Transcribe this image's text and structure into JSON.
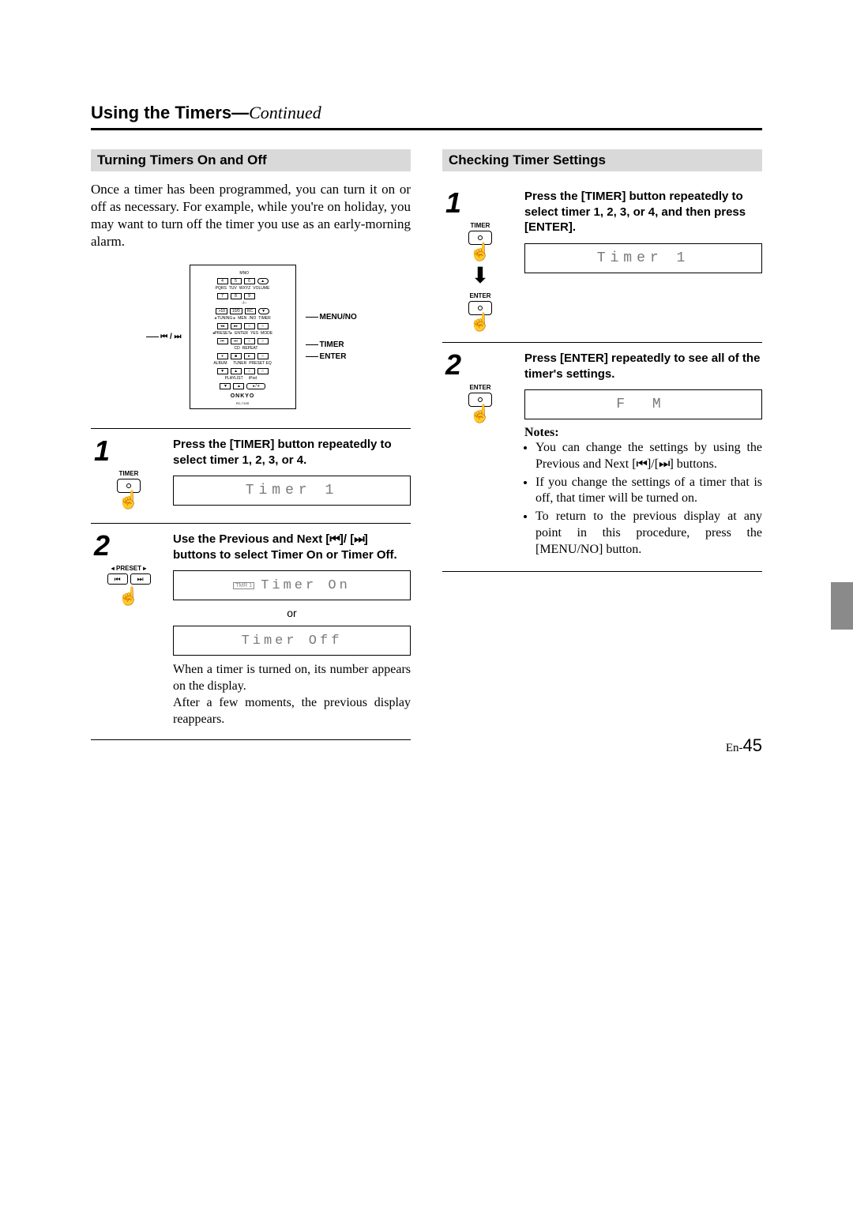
{
  "page": {
    "title_main": "Using the Timers",
    "title_sep": "—",
    "title_cont": "Continued",
    "page_label_prefix": "En-",
    "page_number": "45"
  },
  "left": {
    "heading": "Turning Timers On and Off",
    "intro": "Once a timer has been programmed, you can turn it on or off as necessary. For example, while you're on holiday, you may want to turn off the timer you use as an early-morning alarm.",
    "remote_labels": {
      "left": "⏮ / ⏭",
      "right1": "MENU/NO",
      "right2": "TIMER",
      "right3": "ENTER"
    },
    "remote_brand": "ONKYO",
    "remote_model": "RC-713S",
    "step1": {
      "num": "1",
      "caption": "TIMER",
      "instr": "Press the [TIMER] button repeatedly to select timer 1, 2, 3, or 4.",
      "lcd": "Timer  1"
    },
    "step2": {
      "num": "2",
      "caption": "◂ PRESET ▸",
      "instr_a": "Use the Previous and Next [",
      "instr_b": "]/ [",
      "instr_c": "] buttons to select Timer On or Timer Off.",
      "prev_glyph": "⏮",
      "next_glyph": "⏭",
      "lcd_on": "Timer  On",
      "or": "or",
      "lcd_off": "Timer  Off",
      "tmr_flag": "TMR 1",
      "after1": "When a timer is turned on, its number appears on the display.",
      "after2": "After a few moments, the previous display reappears."
    }
  },
  "right": {
    "heading": "Checking Timer Settings",
    "step1": {
      "num": "1",
      "caption_timer": "TIMER",
      "caption_enter": "ENTER",
      "instr": "Press the [TIMER] button repeatedly to select timer 1, 2, 3, or 4, and then press [ENTER].",
      "lcd": "Timer  1"
    },
    "step2": {
      "num": "2",
      "caption_enter": "ENTER",
      "instr": "Press [ENTER] repeatedly to see all of the timer's settings.",
      "lcd": "F  M",
      "notes_head": "Notes:",
      "note1a": "You can change the settings by using the Previous and Next [",
      "note1b": "]/[",
      "note1c": "] buttons.",
      "prev_glyph": "⏮",
      "next_glyph": "⏭",
      "note2": "If you change the settings of a timer that is off, that timer will be turned on.",
      "note3": "To return to the previous display at any point in this procedure, press the [MENU/NO] button."
    }
  }
}
